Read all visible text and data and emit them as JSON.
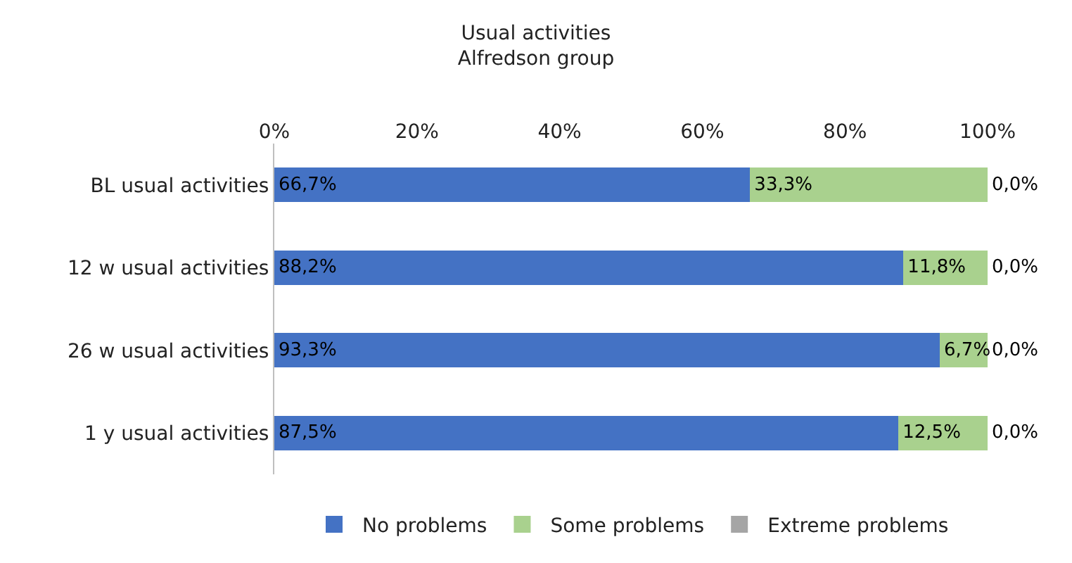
{
  "chart_data": {
    "type": "bar",
    "orientation": "horizontal",
    "stacked": true,
    "title": "Usual activities",
    "subtitle": "Alfredson group",
    "categories": [
      "BL usual activities",
      "12 w usual activities",
      "26 w usual activities",
      "1 y usual activities"
    ],
    "series": [
      {
        "name": "No problems",
        "color": "#4472c4",
        "values": [
          66.7,
          88.2,
          93.3,
          87.5
        ],
        "value_labels": [
          "66,7%",
          "88,2%",
          "93,3%",
          "87,5%"
        ]
      },
      {
        "name": "Some problems",
        "color": "#a9d18e",
        "values": [
          33.3,
          11.8,
          6.7,
          12.5
        ],
        "value_labels": [
          "33,3%",
          "11,8%",
          "6,7%",
          "12,5%"
        ]
      },
      {
        "name": "Extreme problems",
        "color": "#a5a5a5",
        "values": [
          0,
          0,
          0,
          0
        ],
        "value_labels": [
          "0,0%",
          "0,0%",
          "0,0%",
          "0,0%"
        ]
      }
    ],
    "xlim": [
      0,
      100
    ],
    "xticks": [
      {
        "value": 0,
        "label": "0%"
      },
      {
        "value": 20,
        "label": "20%"
      },
      {
        "value": 40,
        "label": "40%"
      },
      {
        "value": 60,
        "label": "60%"
      },
      {
        "value": 80,
        "label": "80%"
      },
      {
        "value": 100,
        "label": "100%"
      }
    ],
    "grid": false,
    "legend": "bottom"
  }
}
